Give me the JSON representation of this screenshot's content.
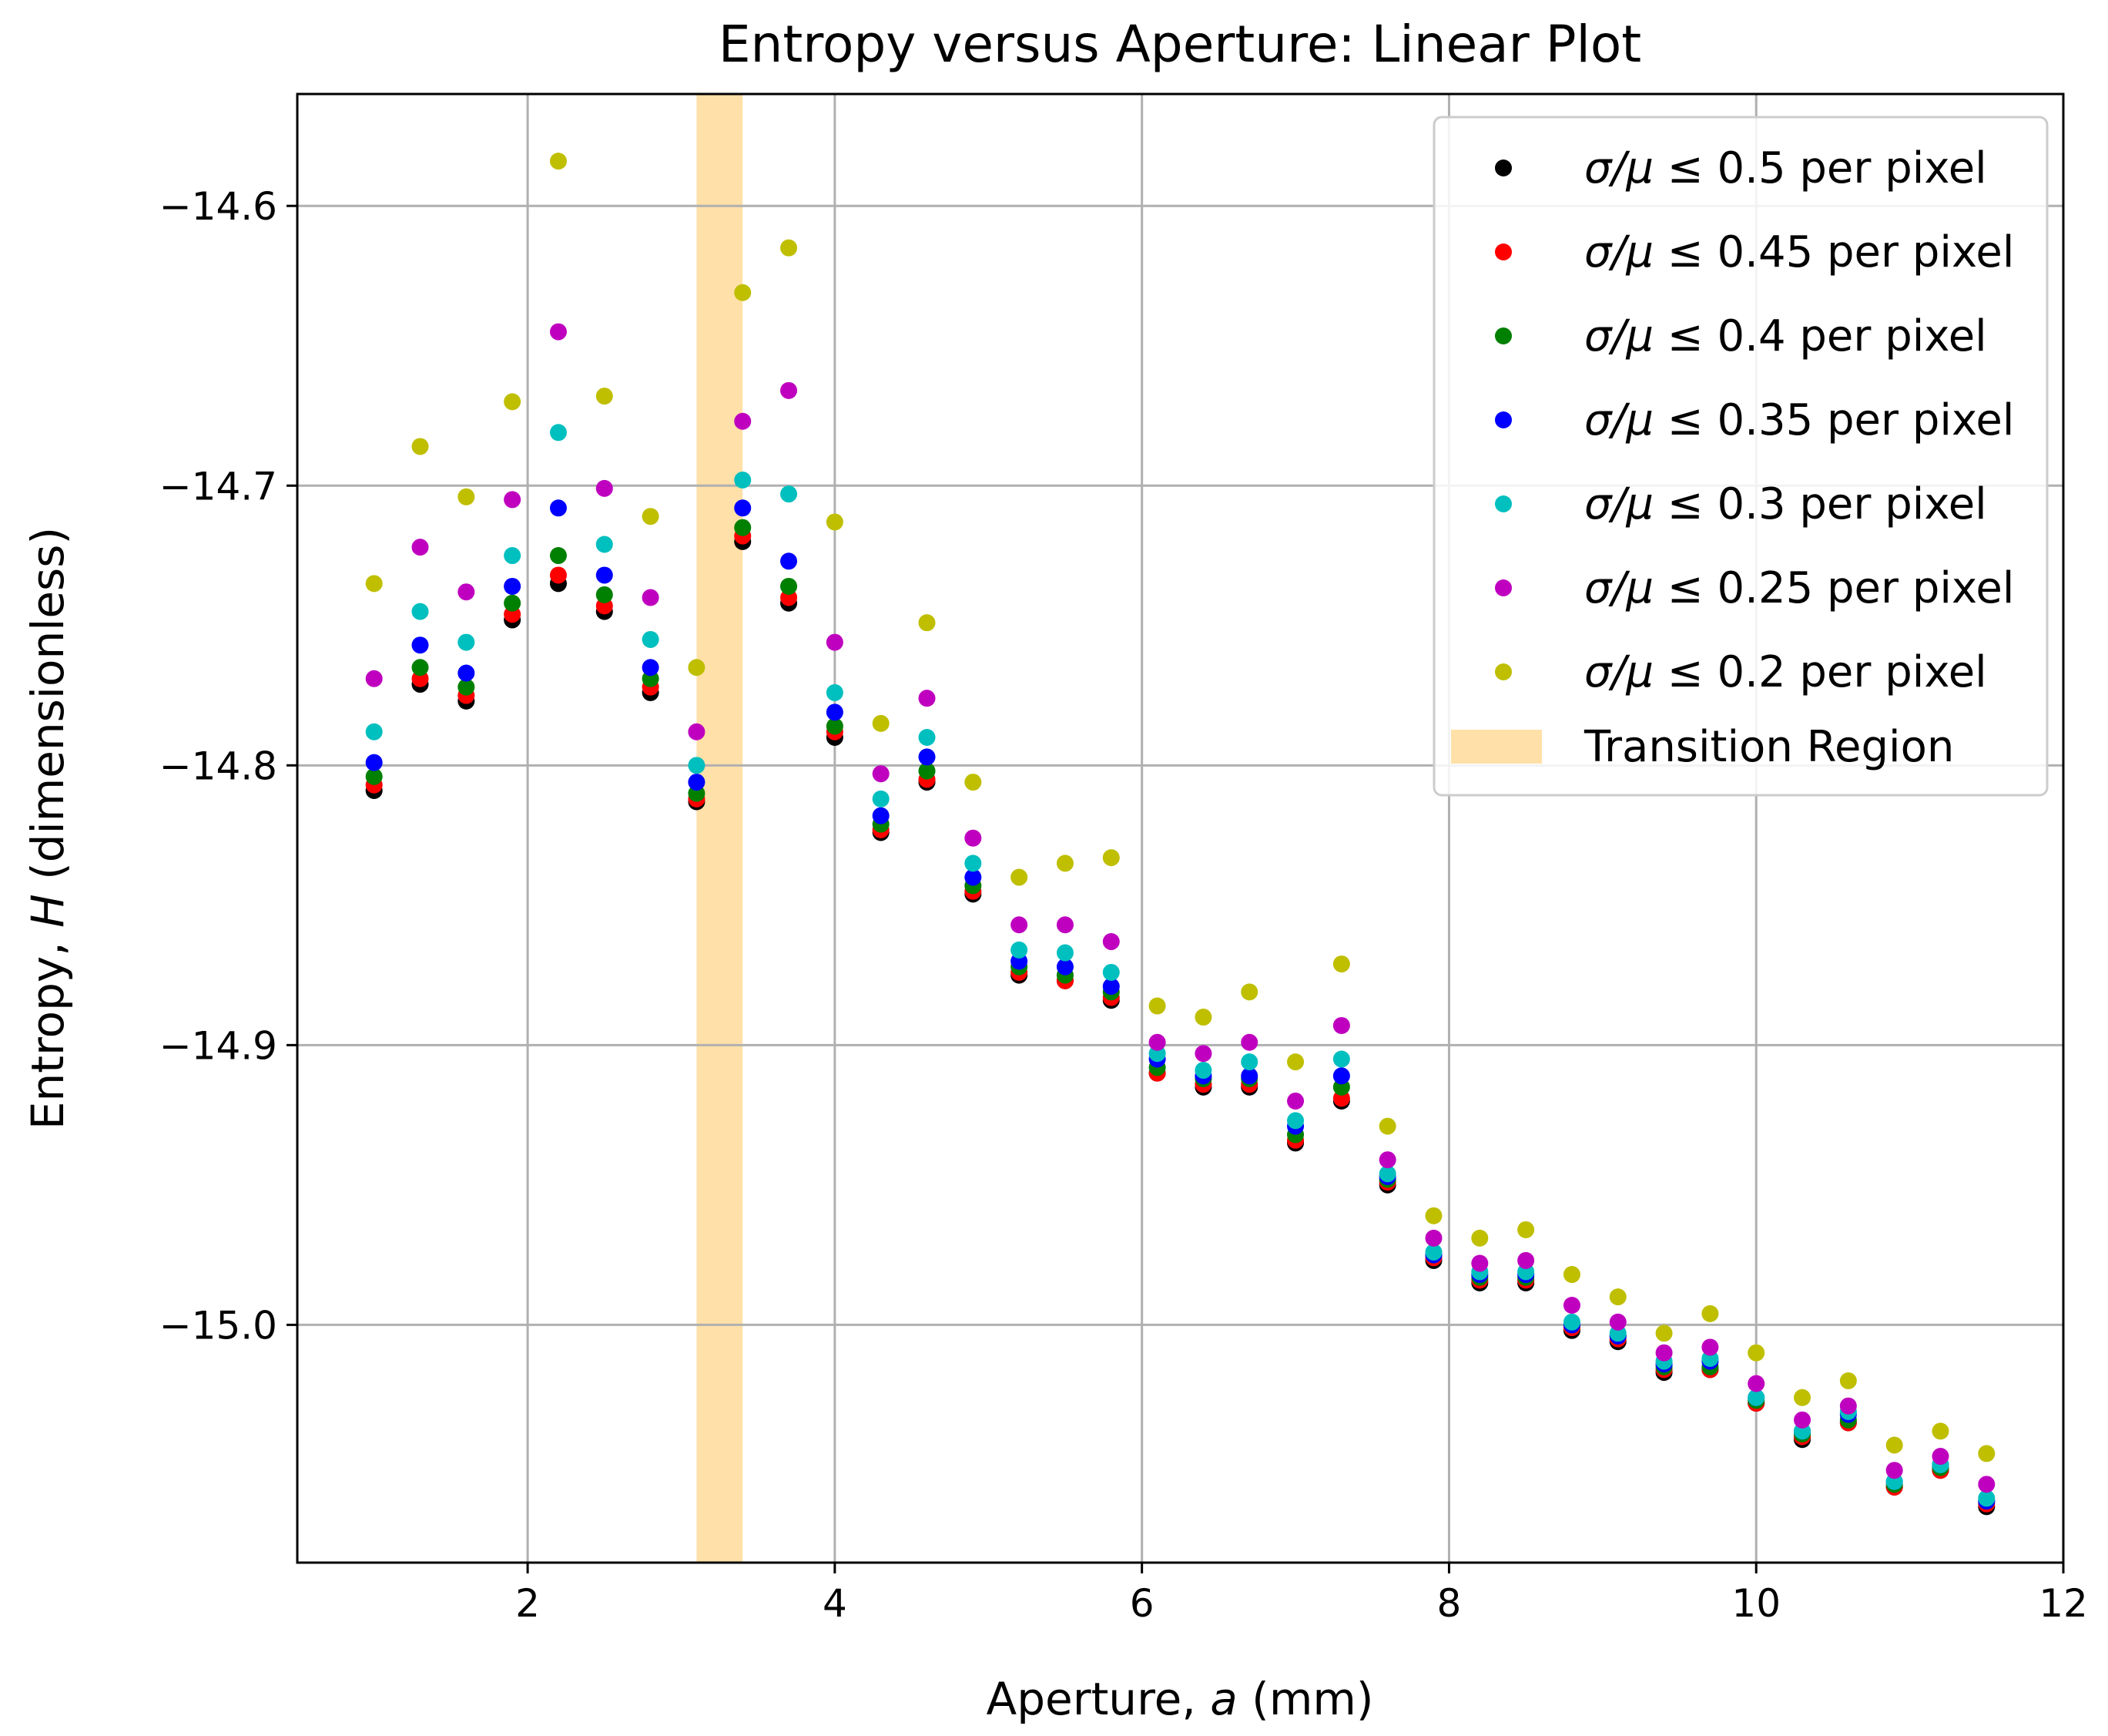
{
  "chart_data": {
    "type": "scatter",
    "title": "Entropy versus Aperture: Linear Plot",
    "xlabel": "Aperture, a (mm)",
    "ylabel": "Entropy, H (dimensionless)",
    "xlim": [
      0.5,
      12
    ],
    "ylim": [
      -15.085,
      -14.56
    ],
    "xticks": [
      2,
      4,
      6,
      8,
      10,
      12
    ],
    "yticks": [
      -14.6,
      -14.7,
      -14.8,
      -14.9,
      -15.0
    ],
    "xtick_labels": [
      "2",
      "4",
      "6",
      "8",
      "10",
      "12"
    ],
    "ytick_labels": [
      "−14.6",
      "−14.7",
      "−14.8",
      "−14.9",
      "−15.0"
    ],
    "grid": true,
    "legend_position": "top-right",
    "transition_region": {
      "label": "Transition Region",
      "x_range": [
        3.1,
        3.4
      ],
      "color": "#ffe0a8"
    },
    "x": [
      1.0,
      1.3,
      1.6,
      1.9,
      2.2,
      2.5,
      2.8,
      3.1,
      3.4,
      3.7,
      4.0,
      4.3,
      4.6,
      4.9,
      5.2,
      5.5,
      5.8,
      6.1,
      6.4,
      6.7,
      7.0,
      7.3,
      7.6,
      7.9,
      8.2,
      8.5,
      8.8,
      9.1,
      9.4,
      9.7,
      10.0,
      10.3,
      10.6,
      10.9,
      11.2,
      11.5
    ],
    "series": [
      {
        "name": "σ/μ ≤ 0.5 per pixel",
        "label_pre": "σ/μ",
        "label_post": " ≤ 0.5 per pixel",
        "color": "#000000",
        "values": [
          -14.809,
          -14.771,
          -14.777,
          -14.748,
          -14.735,
          -14.745,
          -14.774,
          -14.813,
          -14.72,
          -14.742,
          -14.79,
          -14.824,
          -14.806,
          -14.846,
          -14.875,
          -14.877,
          -14.884,
          -14.91,
          -14.915,
          -14.915,
          -14.935,
          -14.92,
          -14.95,
          -14.977,
          -14.985,
          -14.985,
          -15.002,
          -15.006,
          -15.017,
          -15.016,
          -15.028,
          -15.041,
          -15.035,
          -15.058,
          -15.052,
          -15.065
        ]
      },
      {
        "name": "σ/μ ≤ 0.45 per pixel",
        "label_pre": "σ/μ",
        "label_post": " ≤ 0.45 per pixel",
        "color": "#ff0000",
        "values": [
          -14.807,
          -14.769,
          -14.775,
          -14.746,
          -14.732,
          -14.743,
          -14.772,
          -14.812,
          -14.718,
          -14.74,
          -14.788,
          -14.823,
          -14.805,
          -14.845,
          -14.874,
          -14.877,
          -14.883,
          -14.91,
          -14.914,
          -14.914,
          -14.934,
          -14.919,
          -14.949,
          -14.976,
          -14.984,
          -14.984,
          -15.001,
          -15.005,
          -15.016,
          -15.016,
          -15.028,
          -15.04,
          -15.035,
          -15.058,
          -15.052,
          -15.064
        ]
      },
      {
        "name": "σ/μ ≤ 0.4 per pixel",
        "label_pre": "σ/μ",
        "label_post": " ≤ 0.4 per pixel",
        "color": "#008000",
        "values": [
          -14.804,
          -14.765,
          -14.772,
          -14.742,
          -14.725,
          -14.739,
          -14.769,
          -14.81,
          -14.715,
          -14.736,
          -14.786,
          -14.821,
          -14.802,
          -14.843,
          -14.872,
          -14.875,
          -14.881,
          -14.908,
          -14.912,
          -14.912,
          -14.932,
          -14.915,
          -14.948,
          -14.975,
          -14.983,
          -14.983,
          -15.0,
          -15.004,
          -15.015,
          -15.015,
          -15.027,
          -15.039,
          -15.034,
          -15.057,
          -15.051,
          -15.063
        ]
      },
      {
        "name": "σ/μ ≤ 0.35 per pixel",
        "label_pre": "σ/μ",
        "label_post": " ≤ 0.35 per pixel",
        "color": "#0000ff",
        "values": [
          -14.799,
          -14.757,
          -14.767,
          -14.736,
          -14.708,
          -14.732,
          -14.765,
          -14.806,
          -14.708,
          -14.727,
          -14.781,
          -14.818,
          -14.797,
          -14.84,
          -14.87,
          -14.872,
          -14.879,
          -14.905,
          -14.911,
          -14.911,
          -14.929,
          -14.911,
          -14.947,
          -14.975,
          -14.982,
          -14.982,
          -15.0,
          -15.004,
          -15.014,
          -15.013,
          -15.026,
          -15.038,
          -15.032,
          -15.056,
          -15.05,
          -15.063
        ]
      },
      {
        "name": "σ/μ ≤ 0.3 per pixel",
        "label_pre": "σ/μ",
        "label_post": " ≤ 0.3 per pixel",
        "color": "#00bfbf",
        "values": [
          -14.788,
          -14.745,
          -14.756,
          -14.725,
          -14.681,
          -14.721,
          -14.755,
          -14.8,
          -14.698,
          -14.703,
          -14.774,
          -14.812,
          -14.79,
          -14.835,
          -14.866,
          -14.867,
          -14.874,
          -14.903,
          -14.909,
          -14.906,
          -14.927,
          -14.905,
          -14.946,
          -14.974,
          -14.981,
          -14.981,
          -14.999,
          -15.003,
          -15.013,
          -15.012,
          -15.026,
          -15.038,
          -15.031,
          -15.056,
          -15.05,
          -15.062
        ]
      },
      {
        "name": "σ/μ ≤ 0.25 per pixel",
        "label_pre": "σ/μ",
        "label_post": " ≤ 0.25 per pixel",
        "color": "#bf00bf",
        "values": [
          -14.769,
          -14.722,
          -14.738,
          -14.705,
          -14.645,
          -14.701,
          -14.74,
          -14.788,
          -14.677,
          -14.666,
          -14.756,
          -14.803,
          -14.776,
          -14.826,
          -14.857,
          -14.857,
          -14.863,
          -14.899,
          -14.903,
          -14.899,
          -14.92,
          -14.893,
          -14.941,
          -14.969,
          -14.978,
          -14.977,
          -14.993,
          -14.999,
          -15.01,
          -15.008,
          -15.021,
          -15.034,
          -15.029,
          -15.052,
          -15.047,
          -15.057
        ]
      },
      {
        "name": "σ/μ ≤ 0.2 per pixel",
        "label_pre": "σ/μ",
        "label_post": " ≤ 0.2 per pixel",
        "color": "#bfbf00",
        "values": [
          -14.735,
          -14.686,
          -14.704,
          -14.67,
          -14.584,
          -14.668,
          -14.711,
          -14.765,
          -14.631,
          -14.615,
          -14.713,
          -14.785,
          -14.749,
          -14.806,
          -14.84,
          -14.835,
          -14.833,
          -14.886,
          -14.89,
          -14.881,
          -14.906,
          -14.871,
          -14.929,
          -14.961,
          -14.969,
          -14.966,
          -14.982,
          -14.99,
          -15.003,
          -14.996,
          -15.01,
          -15.026,
          -15.02,
          -15.043,
          -15.038,
          -15.046
        ]
      }
    ]
  }
}
